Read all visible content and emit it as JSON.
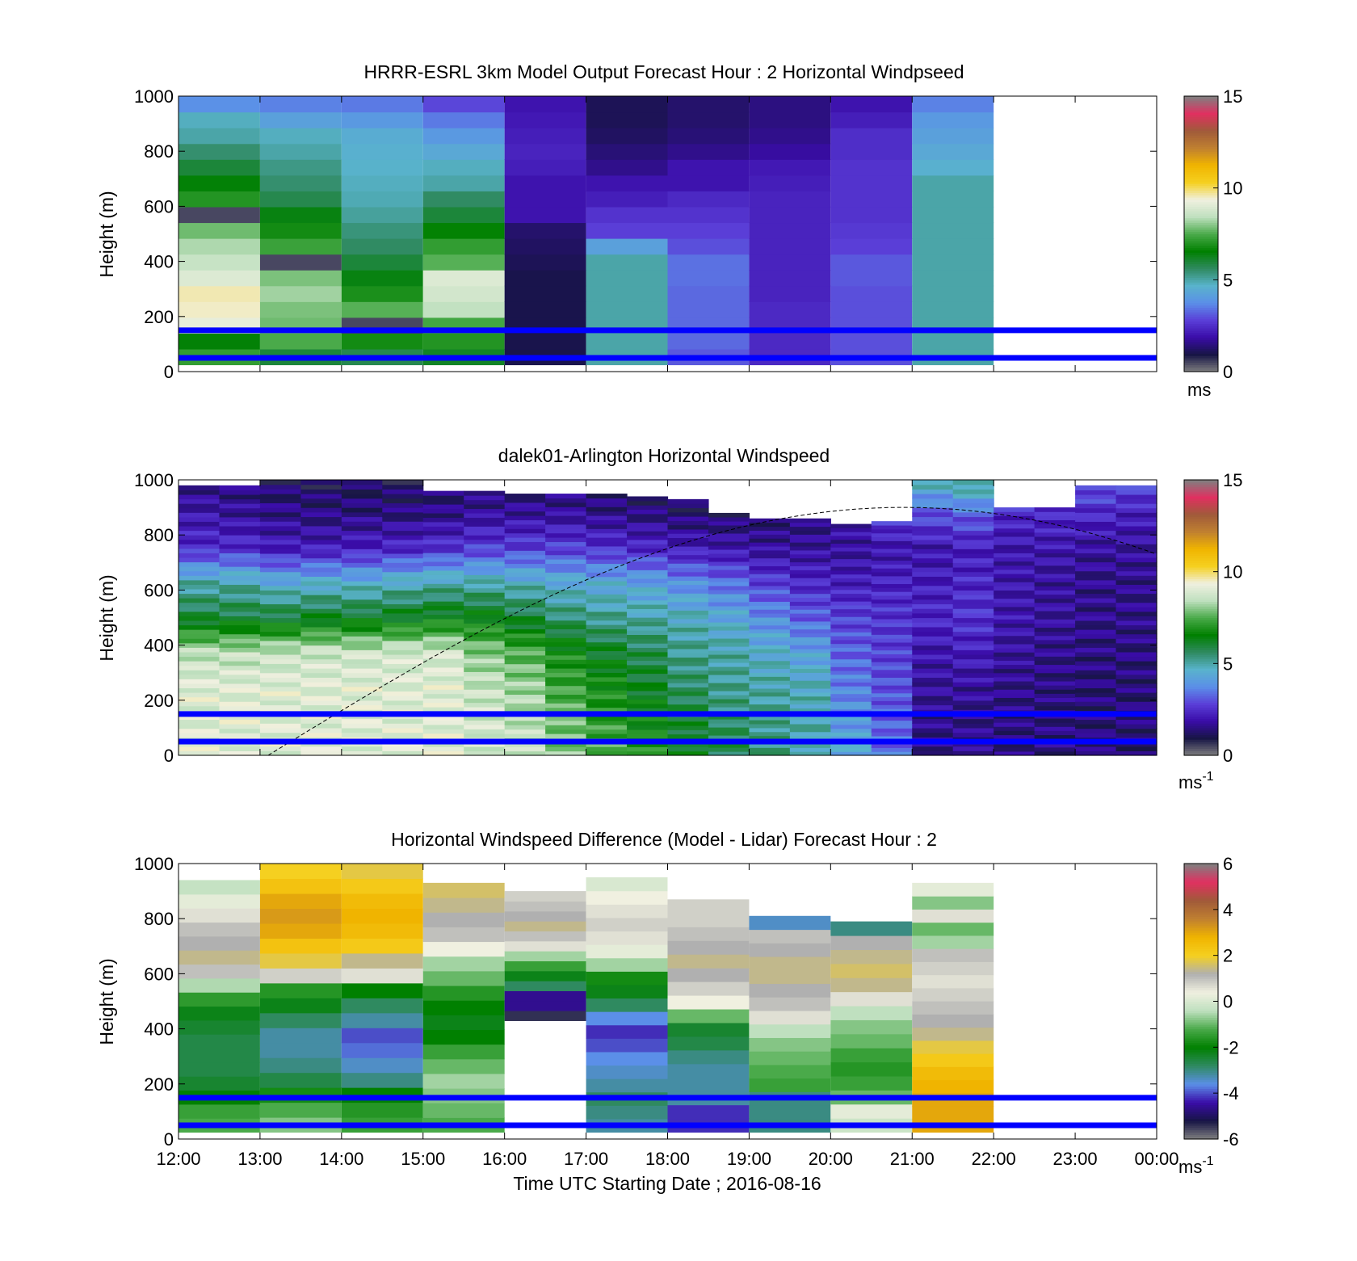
{
  "figure": {
    "colors": {
      "overlay_lines": "#0000ff",
      "speed_colormap": [
        "#808080",
        "#171545",
        "#3a0ca8",
        "#5a3fd8",
        "#5b8fe8",
        "#59b3cc",
        "#2f8a60",
        "#008000",
        "#4aaa4a",
        "#bfe0bf",
        "#f0f0e0",
        "#f5d020",
        "#f0b400",
        "#c08030",
        "#a05a3a",
        "#e03060",
        "#808080"
      ],
      "diff_colormap": [
        "#808080",
        "#171545",
        "#3a0ca8",
        "#5b8fe8",
        "#2f8a60",
        "#008000",
        "#4aaa4a",
        "#bfe0bf",
        "#f0f0e0",
        "#b0b0b0",
        "#f5d020",
        "#f0b400",
        "#c08030",
        "#a05a3a",
        "#e03060",
        "#808080"
      ]
    },
    "x_axis": {
      "ticks": [
        "12:00",
        "13:00",
        "14:00",
        "15:00",
        "16:00",
        "17:00",
        "18:00",
        "19:00",
        "20:00",
        "21:00",
        "22:00",
        "23:00",
        "00:00"
      ],
      "label": "Time UTC  Starting Date ; 2016-08-16"
    }
  },
  "chart_data": [
    {
      "type": "heatmap",
      "title": "HRRR-ESRL 3km Model Output   Forecast Hour : 2 Horizontal Windpseed",
      "ylabel": "Height (m)",
      "ylim": [
        0,
        1000
      ],
      "yticks": [
        "0",
        "200",
        "400",
        "600",
        "800",
        "1000"
      ],
      "x_hours": [
        12,
        24
      ],
      "colorbar": {
        "min": 0,
        "max": 15,
        "ticks": [
          "0",
          "5",
          "10",
          "15"
        ],
        "unit": "ms"
      },
      "reference_lines_m": [
        50,
        150
      ],
      "columns": [
        {
          "start": 12,
          "end": 13,
          "bottom_m": 25,
          "values": [
            7.2,
            6.5,
            9.2,
            9.5,
            9.6,
            9.0,
            8.6,
            8.3,
            7.8,
            0.5,
            7.0,
            6.5,
            6.0,
            5.5,
            5.0,
            4.8,
            3.8
          ]
        },
        {
          "start": 13,
          "end": 14,
          "bottom_m": 25,
          "values": [
            6.0,
            7.5,
            7.8,
            7.9,
            8.2,
            7.9,
            0.5,
            7.3,
            6.8,
            6.4,
            5.8,
            5.5,
            5.3,
            5.0,
            4.8,
            4.2,
            3.6
          ]
        },
        {
          "start": 14,
          "end": 15,
          "bottom_m": 25,
          "values": [
            5.8,
            6.8,
            0.5,
            7.6,
            6.9,
            6.4,
            6.0,
            5.6,
            5.4,
            5.1,
            4.9,
            4.8,
            4.7,
            4.6,
            4.5,
            4.0,
            3.5
          ]
        },
        {
          "start": 15,
          "end": 16,
          "bottom_m": 25,
          "values": [
            6.2,
            7.0,
            7.4,
            8.5,
            8.8,
            9.0,
            7.6,
            7.2,
            6.6,
            6.0,
            5.6,
            5.0,
            4.8,
            4.4,
            4.0,
            3.5,
            2.9
          ]
        },
        {
          "start": 16,
          "end": 17,
          "bottom_m": 25,
          "values": [
            1.0,
            1.0,
            1.0,
            1.0,
            1.0,
            1.0,
            1.1,
            1.2,
            1.3,
            2.0,
            2.0,
            2.0,
            2.2,
            2.3,
            2.2,
            2.1,
            2.0
          ]
        },
        {
          "start": 17,
          "end": 18,
          "bottom_m": 25,
          "values": [
            5.0,
            5.0,
            5.0,
            5.0,
            5.0,
            5.0,
            5.0,
            4.2,
            2.8,
            2.6,
            2.2,
            2.0,
            1.6,
            1.4,
            1.2,
            1.1,
            1.1
          ]
        },
        {
          "start": 18,
          "end": 19,
          "bottom_m": 25,
          "values": [
            3.1,
            3.3,
            3.3,
            3.3,
            3.3,
            3.4,
            3.4,
            3.0,
            2.8,
            2.6,
            2.4,
            2.0,
            2.0,
            1.6,
            1.4,
            1.3,
            1.3
          ]
        },
        {
          "start": 19,
          "end": 20,
          "bottom_m": 25,
          "values": [
            2.4,
            2.4,
            2.4,
            2.4,
            2.3,
            2.3,
            2.3,
            2.3,
            2.3,
            2.3,
            2.3,
            2.2,
            2.1,
            1.8,
            1.6,
            1.5,
            1.5
          ]
        },
        {
          "start": 20,
          "end": 21,
          "bottom_m": 25,
          "values": [
            3.0,
            3.0,
            3.0,
            3.0,
            3.0,
            3.1,
            3.1,
            2.8,
            2.7,
            2.6,
            2.6,
            2.6,
            2.6,
            2.5,
            2.5,
            2.2,
            2.0
          ]
        },
        {
          "start": 21,
          "end": 22,
          "bottom_m": 25,
          "values": [
            5.0,
            5.0,
            5.0,
            5.0,
            5.0,
            5.0,
            5.0,
            5.0,
            5.0,
            5.0,
            5.0,
            5.0,
            4.6,
            4.4,
            4.2,
            4.0,
            3.6
          ]
        }
      ]
    },
    {
      "type": "heatmap",
      "title": "dalek01-Arlington  Horizontal Windspeed",
      "ylabel": "Height (m)",
      "ylim": [
        0,
        1000
      ],
      "yticks": [
        "0",
        "200",
        "400",
        "600",
        "800",
        "1000"
      ],
      "x_hours": [
        12,
        24
      ],
      "colorbar": {
        "min": 0,
        "max": 15,
        "ticks": [
          "0",
          "5",
          "10",
          "15"
        ],
        "unit": "ms",
        "unit_exponent": "-1"
      },
      "reference_lines_m": [
        50,
        150
      ],
      "curve_peak_m": 900,
      "columns": [
        {
          "time": 12.0,
          "top_m": 980,
          "profile": [
            9.0,
            9.0,
            9.0,
            8.5,
            6.0,
            5.0,
            2.5,
            2.0,
            1.5
          ]
        },
        {
          "time": 12.5,
          "top_m": 980,
          "profile": [
            9.0,
            9.0,
            9.0,
            8.5,
            6.0,
            5.0,
            2.5,
            1.8,
            1.4
          ]
        },
        {
          "time": 13.0,
          "top_m": 1000,
          "profile": [
            9.0,
            9.0,
            9.0,
            8.6,
            6.0,
            4.5,
            2.2,
            1.6,
            1.2
          ]
        },
        {
          "time": 13.5,
          "top_m": 1000,
          "profile": [
            9.0,
            9.0,
            9.0,
            8.7,
            6.2,
            4.6,
            2.2,
            1.5,
            1.1
          ]
        },
        {
          "time": 14.0,
          "top_m": 1000,
          "profile": [
            9.0,
            9.0,
            9.0,
            8.7,
            6.2,
            4.6,
            2.3,
            1.5,
            1.1
          ]
        },
        {
          "time": 14.5,
          "top_m": 1000,
          "profile": [
            9.0,
            9.0,
            9.0,
            8.8,
            6.3,
            4.8,
            2.4,
            1.5,
            1.1
          ]
        },
        {
          "time": 15.0,
          "top_m": 960,
          "profile": [
            9.0,
            9.0,
            9.0,
            8.8,
            6.5,
            5.0,
            2.6,
            1.6,
            1.2
          ]
        },
        {
          "time": 15.5,
          "top_m": 960,
          "profile": [
            8.8,
            8.8,
            8.6,
            8.0,
            6.5,
            5.0,
            2.8,
            1.8,
            1.3
          ]
        },
        {
          "time": 16.0,
          "top_m": 950,
          "profile": [
            8.5,
            8.5,
            8.2,
            7.5,
            6.0,
            4.8,
            2.8,
            1.8,
            1.2
          ]
        },
        {
          "time": 16.5,
          "top_m": 950,
          "profile": [
            8.0,
            7.8,
            7.3,
            6.8,
            5.5,
            4.5,
            2.8,
            1.8,
            1.2
          ]
        },
        {
          "time": 17.0,
          "top_m": 950,
          "profile": [
            7.6,
            7.2,
            6.8,
            6.2,
            5.2,
            4.4,
            2.6,
            1.6,
            1.1
          ]
        },
        {
          "time": 17.5,
          "top_m": 940,
          "profile": [
            7.0,
            6.6,
            6.2,
            5.8,
            5.0,
            4.2,
            2.4,
            1.5,
            1.0
          ]
        },
        {
          "time": 18.0,
          "top_m": 930,
          "profile": [
            6.4,
            6.0,
            5.6,
            5.2,
            4.8,
            3.8,
            2.2,
            1.3,
            1.0
          ]
        },
        {
          "time": 18.5,
          "top_m": 880,
          "profile": [
            5.8,
            5.6,
            5.2,
            5.0,
            4.4,
            3.4,
            2.0,
            1.3,
            1.0
          ]
        },
        {
          "time": 19.0,
          "top_m": 860,
          "profile": [
            5.4,
            5.2,
            5.0,
            4.6,
            3.8,
            2.8,
            1.8,
            1.3,
            1.0
          ]
        },
        {
          "time": 19.5,
          "top_m": 860,
          "profile": [
            5.0,
            5.0,
            4.8,
            4.2,
            3.2,
            2.4,
            1.8,
            1.4,
            1.1
          ]
        },
        {
          "time": 20.0,
          "top_m": 840,
          "profile": [
            4.4,
            4.0,
            3.6,
            3.2,
            2.8,
            2.2,
            1.8,
            2.0,
            2.5
          ]
        },
        {
          "time": 20.5,
          "top_m": 850,
          "profile": [
            3.4,
            3.2,
            3.0,
            2.8,
            2.6,
            2.3,
            2.0,
            2.8,
            4.0
          ]
        },
        {
          "time": 21.0,
          "top_m": 1000,
          "profile": [
            1.6,
            1.6,
            1.8,
            2.0,
            2.4,
            2.2,
            2.0,
            3.0,
            5.0
          ]
        },
        {
          "time": 21.5,
          "top_m": 1000,
          "profile": [
            1.6,
            1.6,
            1.8,
            2.2,
            2.6,
            2.4,
            2.2,
            3.2,
            5.5
          ]
        },
        {
          "time": 22.0,
          "top_m": 900,
          "profile": [
            1.5,
            1.5,
            1.6,
            1.8,
            2.0,
            2.0,
            2.0,
            2.4,
            3.0
          ]
        },
        {
          "time": 22.5,
          "top_m": 900,
          "profile": [
            1.5,
            1.5,
            1.5,
            1.6,
            1.8,
            1.8,
            2.0,
            2.4,
            3.0
          ]
        },
        {
          "time": 23.0,
          "top_m": 980,
          "profile": [
            1.4,
            1.4,
            1.4,
            1.5,
            1.6,
            1.6,
            1.8,
            2.4,
            3.2
          ]
        },
        {
          "time": 23.5,
          "top_m": 980,
          "profile": [
            1.4,
            1.4,
            1.4,
            1.5,
            1.6,
            1.6,
            1.8,
            2.2,
            3.0
          ]
        }
      ]
    },
    {
      "type": "heatmap",
      "title": "Horizontal Windspeed Difference (Model - Lidar) Forecast Hour : 2",
      "ylabel": "Height (m)",
      "ylim": [
        0,
        1000
      ],
      "yticks": [
        "0",
        "200",
        "400",
        "600",
        "800",
        "1000"
      ],
      "x_hours": [
        12,
        24
      ],
      "colorbar": {
        "min": -6,
        "max": 6,
        "ticks": [
          "-6",
          "-4",
          "-2",
          "0",
          "2",
          "4",
          "6"
        ],
        "unit": "ms",
        "unit_exponent": "-1"
      },
      "reference_lines_m": [
        50,
        150
      ],
      "columns": [
        {
          "start": 12,
          "end": 13,
          "bottom_m": 25,
          "top_m": 940,
          "values": [
            -1.2,
            -1.4,
            -2.0,
            -2.4,
            -2.6,
            -2.6,
            -2.6,
            -2.4,
            -2.2,
            -1.5,
            -0.5,
            1.0,
            1.4,
            1.2,
            1.0,
            0.6,
            0.2,
            -0.3
          ]
        },
        {
          "start": 13,
          "end": 14,
          "bottom_m": 25,
          "top_m": 1000,
          "values": [
            -0.8,
            -1.2,
            -1.8,
            -2.6,
            -3.0,
            -3.2,
            -3.2,
            -2.8,
            -2.2,
            -1.6,
            0.8,
            1.8,
            2.4,
            3.0,
            3.2,
            3.0,
            2.4,
            2.0
          ]
        },
        {
          "start": 14,
          "end": 15,
          "bottom_m": 25,
          "top_m": 1000,
          "values": [
            -1.4,
            -1.6,
            -2.0,
            -3.0,
            -3.4,
            -3.8,
            -4.0,
            -3.2,
            -2.8,
            -2.0,
            0.6,
            1.4,
            2.2,
            2.6,
            2.8,
            2.6,
            2.2,
            1.8
          ]
        },
        {
          "start": 15,
          "end": 16,
          "bottom_m": 25,
          "top_m": 930,
          "values": [
            -1.2,
            -1.0,
            -0.8,
            -0.6,
            -1.0,
            -1.4,
            -2.0,
            -2.2,
            -2.0,
            -1.6,
            -1.0,
            -0.6,
            0.4,
            1.0,
            1.2,
            1.4,
            1.6
          ]
        },
        {
          "start": 16,
          "end": 17,
          "bottom_m": 430,
          "top_m": 900,
          "values": [
            -5.4,
            -4.6,
            -4.6,
            -2.8,
            -2.2,
            -1.4,
            -0.6,
            0.6,
            1.0,
            1.4,
            1.2,
            1.0,
            0.8
          ]
        },
        {
          "start": 17,
          "end": 18,
          "bottom_m": 25,
          "top_m": 950,
          "values": [
            -3.2,
            -3.0,
            -2.8,
            -3.2,
            -3.4,
            -3.6,
            -4.0,
            -4.2,
            -3.6,
            -2.8,
            -2.2,
            -1.8,
            -0.6,
            0.2,
            0.6,
            0.8,
            0.6,
            0.4,
            0.0
          ]
        },
        {
          "start": 18,
          "end": 19,
          "bottom_m": 25,
          "top_m": 870,
          "values": [
            -4.2,
            -4.2,
            -3.2,
            -3.2,
            -3.2,
            -3.0,
            -2.6,
            -2.4,
            -1.0,
            0.4,
            0.8,
            1.2,
            1.4,
            1.2,
            1.0,
            0.8,
            0.8
          ]
        },
        {
          "start": 19,
          "end": 20,
          "bottom_m": 25,
          "top_m": 810,
          "values": [
            -3.0,
            -3.0,
            -3.0,
            -1.4,
            -1.2,
            -1.0,
            -0.8,
            -0.4,
            0.6,
            1.0,
            1.2,
            1.4,
            1.4,
            1.2,
            1.0,
            -3.4
          ]
        },
        {
          "start": 20,
          "end": 21,
          "bottom_m": 25,
          "top_m": 790,
          "values": [
            -0.2,
            0.2,
            -1.0,
            -1.4,
            -1.6,
            -1.4,
            -1.0,
            -0.8,
            -0.4,
            0.6,
            1.4,
            1.6,
            1.4,
            1.2,
            -3.0
          ]
        },
        {
          "start": 21,
          "end": 22,
          "bottom_m": 25,
          "top_m": 930,
          "values": [
            3.0,
            3.0,
            3.0,
            2.8,
            2.6,
            2.2,
            1.8,
            1.4,
            1.2,
            1.0,
            0.8,
            0.6,
            0.8,
            1.0,
            -0.6,
            -1.0,
            0.6,
            -0.8,
            0.2
          ]
        }
      ]
    }
  ]
}
